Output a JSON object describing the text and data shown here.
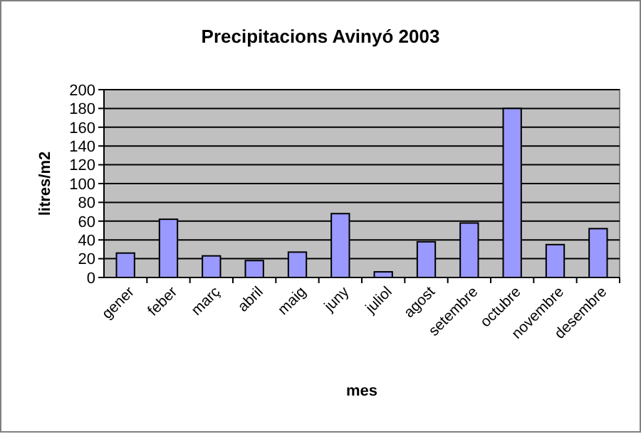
{
  "chart_data": {
    "type": "bar",
    "title": "Precipitacions Avinyó 2003",
    "xlabel": "mes",
    "ylabel": "litres/m2",
    "categories": [
      "gener",
      "feber",
      "març",
      "abril",
      "maig",
      "juny",
      "juliol",
      "agost",
      "setembre",
      "octubre",
      "novembre",
      "desembre"
    ],
    "values": [
      26,
      62,
      23,
      18,
      27,
      68,
      6,
      38,
      58,
      180,
      35,
      52
    ],
    "color": "#9999ff",
    "ylim": [
      0,
      200
    ],
    "yticks": [
      0,
      20,
      40,
      60,
      80,
      100,
      120,
      140,
      160,
      180,
      200
    ],
    "grid": "y"
  }
}
